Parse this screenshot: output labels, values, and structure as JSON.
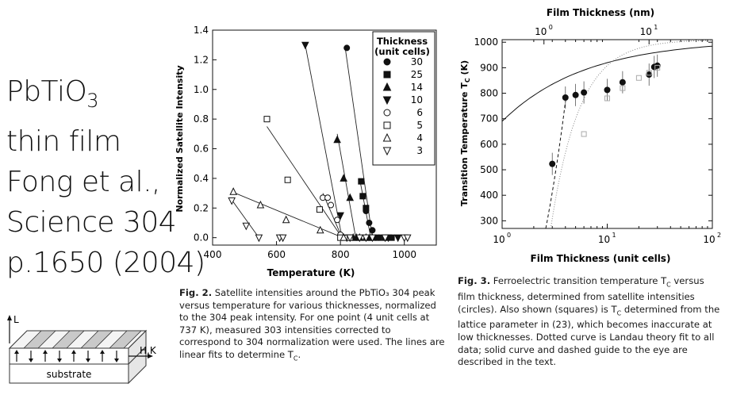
{
  "slide": {
    "title_line1": "PbTiO",
    "title_sub": "3",
    "title_line2": "thin film",
    "title_line3": "Fong et al.,",
    "title_line4": "Science 304",
    "title_line5": "p.1650 (2004)"
  },
  "schematic": {
    "axis_l": "L",
    "axis_hk": "H,K",
    "substrate_label": "substrate",
    "polarization_arrows": [
      "up",
      "down",
      "up",
      "down",
      "up",
      "down",
      "up",
      "down"
    ]
  },
  "fig2": {
    "caption_label": "Fig. 2.",
    "caption_text": " Satellite intensities around the PbTiO₃ 304 peak versus temperature for various thicknesses, normalized to the 304 peak intensity. For one point (4 unit cells at 737 K), measured 303 intensities corrected to correspond to 304 normalization were used. The lines are linear fits to determine T",
    "caption_sub": "C",
    "caption_end": ".",
    "legend_title_line1": "Thickness",
    "legend_title_line2": "(unit cells)",
    "chart_data": {
      "type": "scatter",
      "xlabel": "Temperature (K)",
      "ylabel": "Normalized Satellite Intensity",
      "xlim": [
        400,
        1100
      ],
      "ylim": [
        -0.05,
        1.4
      ],
      "xticks": [
        "400",
        "600",
        "800",
        "1000"
      ],
      "yticks": [
        "0.0",
        "0.2",
        "0.4",
        "0.6",
        "0.8",
        "1.0",
        "1.2",
        "1.4"
      ],
      "legend_position": "top-right",
      "series": [
        {
          "name": "30",
          "marker": "filled-circle",
          "x": [
            820,
            870,
            880,
            890,
            900,
            910,
            920
          ],
          "y": [
            1.28,
            0.28,
            0.18,
            0.1,
            0.05,
            0.0,
            0.0
          ],
          "fit": [
            [
              815,
              1.28
            ],
            [
              900,
              0.0
            ]
          ]
        },
        {
          "name": "25",
          "marker": "filled-square",
          "x": [
            865,
            870,
            880,
            890,
            920,
            940,
            960
          ],
          "y": [
            0.38,
            0.28,
            0.2,
            0.0,
            0.0,
            0.0,
            0.0
          ],
          "fit": [
            [
              860,
              0.4
            ],
            [
              895,
              0.0
            ]
          ]
        },
        {
          "name": "14",
          "marker": "filled-triangle-up",
          "x": [
            790,
            810,
            830,
            840,
            850,
            860,
            880,
            900
          ],
          "y": [
            0.66,
            0.4,
            0.27,
            0.0,
            0.0,
            0.0,
            0.0,
            0.0
          ],
          "fit": [
            [
              790,
              0.7
            ],
            [
              848,
              0.0
            ]
          ]
        },
        {
          "name": "10",
          "marker": "filled-triangle-down",
          "x": [
            690,
            800,
            820,
            950,
            980
          ],
          "y": [
            1.3,
            0.15,
            0.0,
            0.0,
            0.0
          ],
          "fit": [
            [
              690,
              1.3
            ],
            [
              805,
              0.0
            ]
          ]
        },
        {
          "name": "6",
          "marker": "open-circle",
          "x": [
            745,
            760,
            770,
            790,
            800,
            820
          ],
          "y": [
            0.27,
            0.27,
            0.22,
            0.12,
            0.02,
            0.0
          ],
          "fit": [
            [
              745,
              0.3
            ],
            [
              805,
              0.0
            ]
          ]
        },
        {
          "name": "5",
          "marker": "open-square",
          "x": [
            570,
            635,
            735,
            800,
            830
          ],
          "y": [
            0.8,
            0.39,
            0.19,
            0.0,
            0.0
          ],
          "fit": [
            [
              570,
              0.75
            ],
            [
              805,
              0.0
            ]
          ]
        },
        {
          "name": "4",
          "marker": "open-triangle-up",
          "x": [
            465,
            550,
            630,
            737,
            810
          ],
          "y": [
            0.31,
            0.22,
            0.12,
            0.05,
            0.0
          ],
          "fit": [
            [
              460,
              0.31
            ],
            [
              808,
              0.0
            ]
          ]
        },
        {
          "name": "3",
          "marker": "open-triangle-down",
          "x": [
            460,
            505,
            545,
            610,
            620,
            830,
            860,
            880,
            900,
            940,
            1000,
            1010
          ],
          "y": [
            0.25,
            0.08,
            0.0,
            0.0,
            0.0,
            0.0,
            0.0,
            0.0,
            0.0,
            0.0,
            0.0,
            0.0
          ],
          "fit": [
            [
              455,
              0.27
            ],
            [
              545,
              0.0
            ]
          ]
        }
      ]
    }
  },
  "fig3": {
    "caption_label": "Fig. 3.",
    "caption_text_a": " Ferroelectric transition temperature T",
    "caption_sub_a": "C",
    "caption_text_b": " versus film thickness, determined from satellite intensities (circles). Also shown (squares) is T",
    "caption_sub_b": "C",
    "caption_text_c": " determined from the lattice parameter in (23), which becomes inaccurate at low thicknesses. Dotted curve is Landau theory fit to all data; solid curve and dashed guide to the eye are described in the text.",
    "chart_data": {
      "type": "scatter",
      "xlabel": "Film Thickness (unit cells)",
      "top_xlabel": "Film Thickness (nm)",
      "ylabel": "Transition Temperature T",
      "ylabel_sub": "C",
      "ylabel_unit": " (K)",
      "xscale": "log",
      "xlim": [
        1,
        100
      ],
      "ylim": [
        270,
        1010
      ],
      "xticks": [
        "10⁰",
        "10¹",
        "10²"
      ],
      "xtick_exp": [
        "0",
        "1",
        "2"
      ],
      "top_xticks": [
        "10⁰",
        "10¹"
      ],
      "top_xtick_exp": [
        "0",
        "1"
      ],
      "yticks": [
        "300",
        "400",
        "500",
        "600",
        "700",
        "800",
        "900",
        "1000"
      ],
      "series": [
        {
          "name": "circles",
          "marker": "filled-circle",
          "x": [
            3,
            4,
            5,
            6,
            10,
            14,
            25,
            28,
            30
          ],
          "y": [
            523,
            783,
            793,
            803,
            813,
            843,
            873,
            903,
            908
          ]
        },
        {
          "name": "squares",
          "marker": "open-square",
          "x": [
            6,
            10,
            14,
            20,
            25,
            30
          ],
          "y": [
            640,
            780,
            820,
            860,
            880,
            900
          ]
        }
      ]
    }
  }
}
